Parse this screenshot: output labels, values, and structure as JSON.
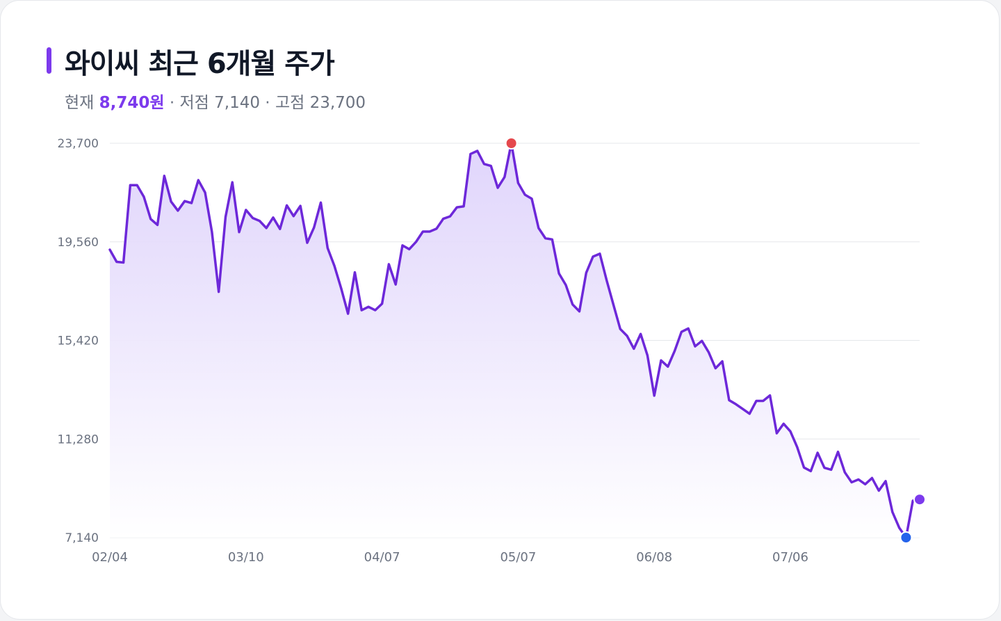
{
  "header": {
    "title": "와이씨 최근 6개월 주가",
    "current_label": "현재",
    "current_value": "8,740원",
    "sep1": " · ",
    "low_label": "저점",
    "low_value": "7,140",
    "sep2": " · ",
    "high_label": "고점",
    "high_value": "23,700"
  },
  "colors": {
    "line": "#6d28d9",
    "fill_top": "#ddd1fb",
    "grid": "#e5e7eb",
    "high_marker": "#e5484d",
    "low_marker": "#2563eb",
    "last_marker": "#7c3aed"
  },
  "chart_data": {
    "type": "area",
    "title": "와이씨 최근 6개월 주가",
    "ylim": [
      7140,
      23700
    ],
    "y_ticks": [
      7140,
      11280,
      15420,
      19560,
      23700
    ],
    "y_tick_labels": [
      "7,140",
      "11,280",
      "15,420",
      "19,560",
      "23,700"
    ],
    "x_tick_labels": [
      "02/04",
      "03/10",
      "04/07",
      "05/07",
      "06/08",
      "07/06"
    ],
    "x_tick_indices": [
      0,
      20,
      40,
      60,
      80,
      100
    ],
    "grid": true,
    "markers": {
      "high_index": 59,
      "low_index": 117,
      "last_index": 119
    },
    "values": [
      19230,
      18720,
      18690,
      21940,
      21940,
      21450,
      20520,
      20270,
      22330,
      21250,
      20870,
      21270,
      21190,
      22150,
      21630,
      19980,
      17460,
      20600,
      22060,
      19970,
      20900,
      20560,
      20440,
      20140,
      20580,
      20100,
      21090,
      20640,
      21070,
      19520,
      20160,
      21210,
      19300,
      18550,
      17600,
      16540,
      18280,
      16690,
      16830,
      16690,
      16960,
      18620,
      17770,
      19410,
      19250,
      19560,
      19990,
      19990,
      20110,
      20530,
      20630,
      21010,
      21050,
      23250,
      23380,
      22830,
      22750,
      21830,
      22280,
      23700,
      22030,
      21540,
      21370,
      20140,
      19710,
      19660,
      18230,
      17750,
      16930,
      16640,
      18260,
      18940,
      19060,
      17950,
      16920,
      15900,
      15610,
      15070,
      15690,
      14790,
      13100,
      14580,
      14320,
      14980,
      15780,
      15920,
      15170,
      15400,
      14920,
      14250,
      14540,
      12910,
      12740,
      12540,
      12340,
      12880,
      12880,
      13110,
      11520,
      11920,
      11600,
      10940,
      10080,
      9930,
      10700,
      10070,
      9990,
      10740,
      9880,
      9460,
      9580,
      9380,
      9640,
      9110,
      9510,
      8210,
      7550,
      7140,
      8690,
      8740
    ]
  }
}
